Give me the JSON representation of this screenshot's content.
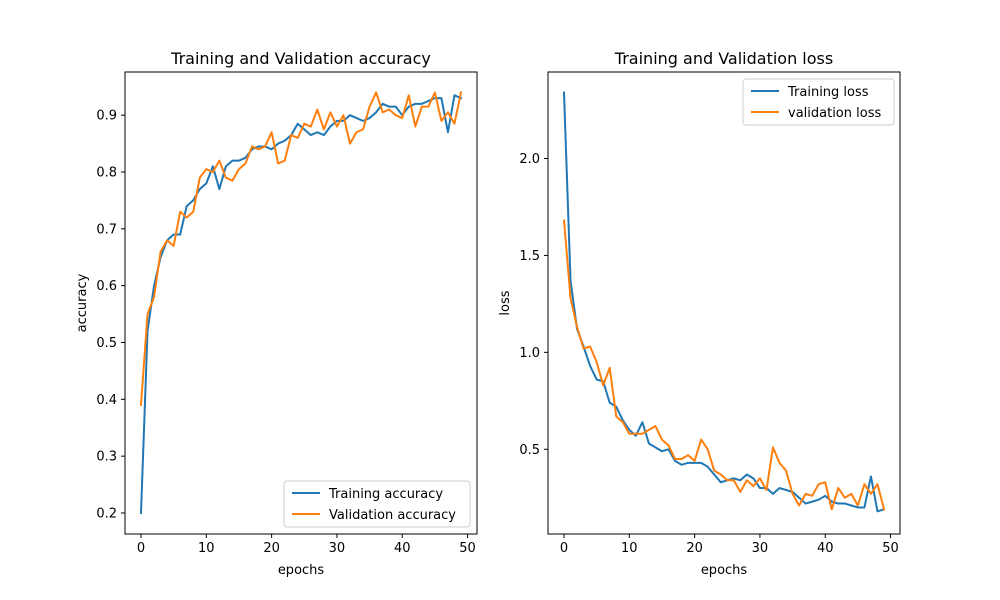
{
  "chart_data": [
    {
      "type": "line",
      "title": "Training and Validation accuracy",
      "xlabel": "epochs",
      "ylabel": "accuracy",
      "xlim": [
        -2.45,
        51.45
      ],
      "ylim": [
        0.163,
        0.976
      ],
      "xticks": [
        0,
        10,
        20,
        30,
        40,
        50
      ],
      "yticks": [
        0.2,
        0.3,
        0.4,
        0.5,
        0.6,
        0.7,
        0.8,
        0.9
      ],
      "grid": false,
      "legend": "bottom-right",
      "x": [
        0,
        1,
        2,
        3,
        4,
        5,
        6,
        7,
        8,
        9,
        10,
        11,
        12,
        13,
        14,
        15,
        16,
        17,
        18,
        19,
        20,
        21,
        22,
        23,
        24,
        25,
        26,
        27,
        28,
        29,
        30,
        31,
        32,
        33,
        34,
        35,
        36,
        37,
        38,
        39,
        40,
        41,
        42,
        43,
        44,
        45,
        46,
        47,
        48,
        49
      ],
      "series": [
        {
          "name": "Training accuracy",
          "color": "#1f77b4",
          "values": [
            0.2,
            0.52,
            0.6,
            0.65,
            0.68,
            0.69,
            0.69,
            0.74,
            0.75,
            0.77,
            0.78,
            0.81,
            0.77,
            0.81,
            0.82,
            0.82,
            0.825,
            0.84,
            0.845,
            0.845,
            0.84,
            0.85,
            0.855,
            0.865,
            0.885,
            0.875,
            0.865,
            0.87,
            0.865,
            0.88,
            0.89,
            0.89,
            0.9,
            0.895,
            0.89,
            0.895,
            0.905,
            0.92,
            0.915,
            0.915,
            0.9,
            0.915,
            0.92,
            0.92,
            0.925,
            0.93,
            0.93,
            0.87,
            0.935,
            0.93
          ]
        },
        {
          "name": "Validation accuracy",
          "color": "#ff7f0e",
          "values": [
            0.39,
            0.55,
            0.58,
            0.66,
            0.68,
            0.67,
            0.73,
            0.72,
            0.73,
            0.79,
            0.805,
            0.8,
            0.82,
            0.79,
            0.785,
            0.805,
            0.815,
            0.845,
            0.84,
            0.845,
            0.87,
            0.815,
            0.82,
            0.865,
            0.86,
            0.885,
            0.88,
            0.91,
            0.875,
            0.905,
            0.88,
            0.9,
            0.85,
            0.87,
            0.875,
            0.915,
            0.94,
            0.905,
            0.91,
            0.9,
            0.895,
            0.935,
            0.88,
            0.915,
            0.915,
            0.94,
            0.89,
            0.905,
            0.885,
            0.94
          ]
        }
      ]
    },
    {
      "type": "line",
      "title": "Training and Validation loss",
      "xlabel": "epochs",
      "ylabel": "loss",
      "xlim": [
        -2.45,
        51.45
      ],
      "ylim": [
        0.063,
        2.446
      ],
      "xticks": [
        0,
        10,
        20,
        30,
        40,
        50
      ],
      "yticks": [
        0.5,
        1.0,
        1.5,
        2.0
      ],
      "ytick_labels": [
        "0.5",
        "1.0",
        "1.5",
        "2.0"
      ],
      "grid": false,
      "legend": "top-right",
      "x": [
        0,
        1,
        2,
        3,
        4,
        5,
        6,
        7,
        8,
        9,
        10,
        11,
        12,
        13,
        14,
        15,
        16,
        17,
        18,
        19,
        20,
        21,
        22,
        23,
        24,
        25,
        26,
        27,
        28,
        29,
        30,
        31,
        32,
        33,
        34,
        35,
        36,
        37,
        38,
        39,
        40,
        41,
        42,
        43,
        44,
        45,
        46,
        47,
        48,
        49
      ],
      "series": [
        {
          "name": "Training loss",
          "color": "#1f77b4",
          "values": [
            2.34,
            1.37,
            1.12,
            1.03,
            0.93,
            0.86,
            0.85,
            0.74,
            0.72,
            0.65,
            0.6,
            0.57,
            0.64,
            0.53,
            0.51,
            0.49,
            0.5,
            0.44,
            0.42,
            0.43,
            0.43,
            0.43,
            0.41,
            0.37,
            0.33,
            0.34,
            0.35,
            0.34,
            0.37,
            0.35,
            0.3,
            0.3,
            0.27,
            0.3,
            0.29,
            0.28,
            0.25,
            0.22,
            0.23,
            0.24,
            0.26,
            0.23,
            0.22,
            0.22,
            0.21,
            0.2,
            0.2,
            0.36,
            0.18,
            0.19
          ]
        },
        {
          "name": "validation loss",
          "color": "#ff7f0e",
          "values": [
            1.68,
            1.28,
            1.13,
            1.02,
            1.03,
            0.95,
            0.83,
            0.92,
            0.67,
            0.64,
            0.58,
            0.58,
            0.58,
            0.6,
            0.62,
            0.55,
            0.52,
            0.45,
            0.45,
            0.47,
            0.44,
            0.55,
            0.5,
            0.39,
            0.37,
            0.34,
            0.34,
            0.28,
            0.34,
            0.31,
            0.35,
            0.29,
            0.51,
            0.43,
            0.39,
            0.27,
            0.21,
            0.27,
            0.26,
            0.32,
            0.33,
            0.19,
            0.3,
            0.25,
            0.27,
            0.21,
            0.32,
            0.27,
            0.32,
            0.19
          ]
        }
      ]
    }
  ]
}
